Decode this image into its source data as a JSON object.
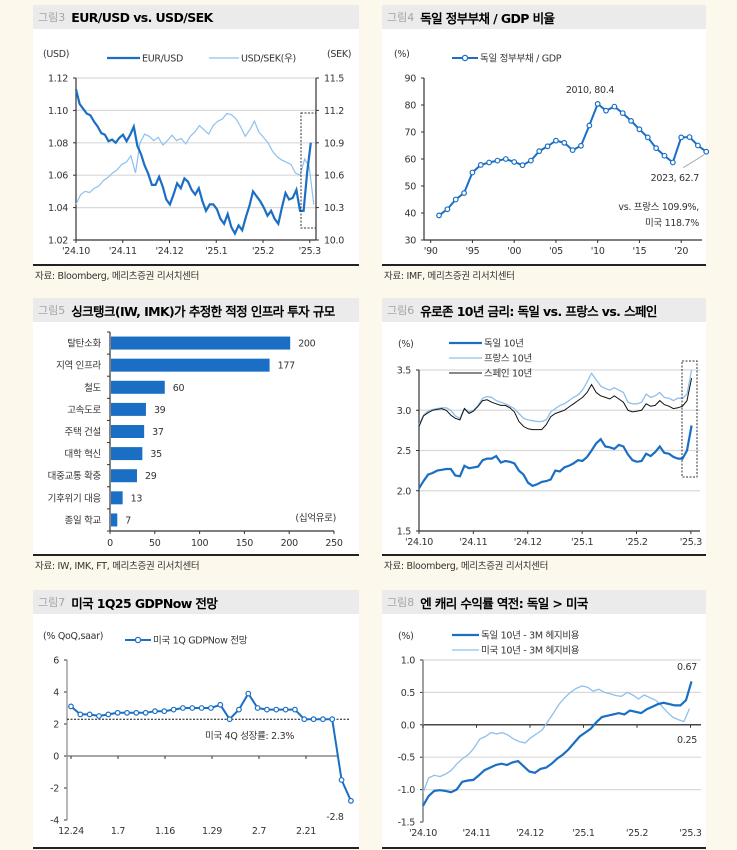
{
  "colors": {
    "background": "#fdf8ec",
    "dark_blue": "#1a6fc4",
    "light_blue": "#8fc0ec",
    "black": "#111111",
    "grid": "#d9d9d9"
  },
  "panels": [
    {
      "num": "그림3",
      "title": "EUR/USD vs. USD/SEK",
      "source": "자료: Bloomberg, 메리츠증권 리서치센터"
    },
    {
      "num": "그림4",
      "title": "독일 정부부채 / GDP 비율",
      "source": "자료: IMF, 메리츠증권 리서치센터"
    },
    {
      "num": "그림5",
      "title": "싱크탱크(IW, IMK)가 추정한 적정 인프라 투자 규모",
      "source": "자료: IW, IMK, FT, 메리츠증권 리서치센터"
    },
    {
      "num": "그림6",
      "title": "유로존 10년 금리: 독일 vs. 프랑스 vs. 스페인",
      "source": "자료: Bloomberg, 메리츠증권 리서치센터"
    },
    {
      "num": "그림7",
      "title": "미국 1Q25 GDPNow 전망",
      "source": ""
    },
    {
      "num": "그림8",
      "title": "엔 캐리 수익률 역전: 독일 > 미국",
      "source": ""
    }
  ],
  "chart_data": [
    {
      "id": "fig3",
      "type": "line",
      "title": "EUR/USD vs. USD/SEK",
      "ylabel": "(USD)",
      "y2label": "(SEK)",
      "xticks": [
        "'24.10",
        "'24.11",
        "'24.12",
        "'25.1",
        "'25.2",
        "'25.3"
      ],
      "ylim": [
        1.02,
        1.12
      ],
      "yticks": [
        "1.02",
        "1.04",
        "1.06",
        "1.08",
        "1.10",
        "1.12"
      ],
      "y2lim": [
        10.0,
        11.5
      ],
      "y2ticks": [
        "10.0",
        "10.3",
        "10.6",
        "10.9",
        "11.2",
        "11.5"
      ],
      "grid": true,
      "legend": "top",
      "highlight_box": "last two weeks of series",
      "series": [
        {
          "name": "EUR/USD",
          "axis": "left",
          "color": "#1a6fc4",
          "values": [
            1.113,
            1.104,
            1.101,
            1.098,
            1.097,
            1.093,
            1.09,
            1.086,
            1.085,
            1.081,
            1.082,
            1.08,
            1.083,
            1.085,
            1.081,
            1.085,
            1.09,
            1.078,
            1.073,
            1.066,
            1.061,
            1.054,
            1.054,
            1.059,
            1.053,
            1.045,
            1.042,
            1.048,
            1.055,
            1.052,
            1.058,
            1.056,
            1.051,
            1.048,
            1.052,
            1.044,
            1.038,
            1.042,
            1.042,
            1.039,
            1.033,
            1.03,
            1.036,
            1.028,
            1.024,
            1.029,
            1.026,
            1.034,
            1.041,
            1.05,
            1.047,
            1.044,
            1.04,
            1.035,
            1.038,
            1.033,
            1.03,
            1.04,
            1.049,
            1.045,
            1.046,
            1.051,
            1.038,
            1.038,
            1.062,
            1.08
          ]
        },
        {
          "name": "USD/SEK(우)",
          "axis": "right",
          "color": "#8fc0ec",
          "values": [
            10.33,
            10.42,
            10.45,
            10.44,
            10.48,
            10.5,
            10.55,
            10.58,
            10.62,
            10.65,
            10.7,
            10.72,
            10.78,
            10.62,
            10.9,
            10.98,
            10.96,
            10.92,
            10.95,
            10.88,
            10.92,
            10.97,
            10.92,
            10.94,
            10.89,
            10.96,
            11.0,
            11.06,
            11.02,
            10.98,
            11.06,
            11.1,
            11.12,
            11.17,
            11.16,
            11.12,
            11.05,
            10.96,
            11.02,
            11.1,
            11.0,
            10.95,
            10.9,
            10.82,
            10.77,
            10.74,
            10.72,
            10.7,
            10.62,
            10.6,
            10.75,
            10.68,
            10.33
          ]
        }
      ]
    },
    {
      "id": "fig4",
      "type": "line",
      "title": "독일 정부부채 / GDP 비율",
      "ylabel": "(%)",
      "ylim": [
        30,
        90
      ],
      "yticks": [
        "30",
        "40",
        "50",
        "60",
        "70",
        "80",
        "90"
      ],
      "xticks": [
        "'90",
        "'95",
        "'00",
        "'05",
        "'10",
        "'15",
        "'20"
      ],
      "x": [
        1991,
        1992,
        1993,
        1994,
        1995,
        1996,
        1997,
        1998,
        1999,
        2000,
        2001,
        2002,
        2003,
        2004,
        2005,
        2006,
        2007,
        2008,
        2009,
        2010,
        2011,
        2012,
        2013,
        2014,
        2015,
        2016,
        2017,
        2018,
        2019,
        2020,
        2021,
        2022,
        2023
      ],
      "series": [
        {
          "name": "독일 정부부채 / GDP",
          "color": "#1a6fc4",
          "values": [
            39.1,
            41.4,
            45.0,
            47.4,
            55.0,
            57.8,
            58.7,
            59.4,
            60.0,
            58.9,
            57.7,
            59.4,
            62.9,
            64.7,
            66.8,
            66.0,
            63.3,
            64.9,
            72.4,
            80.4,
            77.9,
            79.4,
            77.0,
            74.1,
            71.0,
            68.0,
            64.0,
            61.2,
            58.7,
            68.0,
            68.1,
            65.0,
            62.7
          ]
        }
      ],
      "annotations": [
        "2010, 80.4",
        "2023, 62.7",
        "vs. 프랑스 109.9%,",
        "미국 118.7%"
      ]
    },
    {
      "id": "fig5",
      "type": "bar",
      "orientation": "horizontal",
      "title": "싱크탱크(IW, IMK)가 추정한 적정 인프라 투자 규모",
      "unit": "(십억유로)",
      "xlim": [
        0,
        250
      ],
      "xticks": [
        "0",
        "50",
        "100",
        "150",
        "200",
        "250"
      ],
      "categories": [
        "탈탄소화",
        "지역 인프라",
        "철도",
        "고속도로",
        "주택 건설",
        "대학 혁신",
        "대중교통 확충",
        "기후위기 대응",
        "종일 학교"
      ],
      "values": [
        200,
        177,
        60,
        39,
        37,
        35,
        29,
        13,
        7
      ],
      "color": "#1a6fc4"
    },
    {
      "id": "fig6",
      "type": "line",
      "title": "유로존 10년 금리: 독일 vs. 프랑스 vs. 스페인",
      "ylabel": "(%)",
      "ylim": [
        1.5,
        3.5
      ],
      "yticks": [
        "1.5",
        "2.0",
        "2.5",
        "3.0",
        "3.5"
      ],
      "xticks": [
        "'24.10",
        "'24.11",
        "'24.12",
        "'25.1",
        "'25.2",
        "'25.3"
      ],
      "grid": true,
      "legend": "top-left",
      "highlight_box": "last two weeks of series",
      "series": [
        {
          "name": "독일 10년",
          "color": "#1a6fc4",
          "values": [
            2.03,
            2.12,
            2.2,
            2.22,
            2.25,
            2.26,
            2.27,
            2.27,
            2.19,
            2.18,
            2.31,
            2.28,
            2.29,
            2.3,
            2.38,
            2.4,
            2.4,
            2.43,
            2.35,
            2.37,
            2.36,
            2.34,
            2.25,
            2.2,
            2.1,
            2.06,
            2.08,
            2.11,
            2.12,
            2.14,
            2.25,
            2.24,
            2.29,
            2.31,
            2.34,
            2.38,
            2.37,
            2.42,
            2.5,
            2.59,
            2.64,
            2.55,
            2.54,
            2.52,
            2.57,
            2.55,
            2.45,
            2.38,
            2.36,
            2.37,
            2.46,
            2.43,
            2.48,
            2.55,
            2.47,
            2.46,
            2.42,
            2.4,
            2.4,
            2.5,
            2.81
          ]
        },
        {
          "name": "프랑스 10년",
          "color": "#8fc0ec",
          "values": [
            2.82,
            2.94,
            2.99,
            3.01,
            3.02,
            3.03,
            3.03,
            3.0,
            2.93,
            2.9,
            3.02,
            2.98,
            3.0,
            3.06,
            3.15,
            3.17,
            3.16,
            3.12,
            3.1,
            3.08,
            3.05,
            3.02,
            2.96,
            2.9,
            2.88,
            2.87,
            2.86,
            2.86,
            2.88,
            2.98,
            3.02,
            3.06,
            3.08,
            3.12,
            3.16,
            3.19,
            3.25,
            3.35,
            3.46,
            3.38,
            3.3,
            3.27,
            3.25,
            3.28,
            3.25,
            3.22,
            3.1,
            3.08,
            3.08,
            3.1,
            3.2,
            3.16,
            3.18,
            3.22,
            3.16,
            3.15,
            3.12,
            3.15,
            3.15,
            3.2,
            3.5
          ]
        },
        {
          "name": "스페인 10년",
          "color": "#111111",
          "values": [
            2.8,
            2.93,
            2.97,
            3.0,
            3.01,
            3.02,
            3.0,
            2.94,
            2.9,
            2.88,
            3.02,
            2.96,
            2.99,
            3.05,
            3.12,
            3.13,
            3.1,
            3.08,
            3.06,
            3.06,
            3.03,
            2.98,
            2.86,
            2.8,
            2.77,
            2.76,
            2.76,
            2.76,
            2.82,
            2.92,
            2.96,
            2.98,
            3.0,
            3.04,
            3.08,
            3.12,
            3.16,
            3.22,
            3.32,
            3.22,
            3.18,
            3.16,
            3.14,
            3.18,
            3.14,
            3.1,
            3.0,
            2.98,
            2.99,
            3.0,
            3.08,
            3.05,
            3.06,
            3.12,
            3.07,
            3.05,
            3.02,
            3.03,
            3.05,
            3.12,
            3.4
          ]
        }
      ]
    },
    {
      "id": "fig7",
      "type": "line",
      "title": "미국 1Q25 GDPNow 전망",
      "ylabel": "(% QoQ,saar)",
      "ylim": [
        -4,
        6
      ],
      "yticks": [
        "-4",
        "-2",
        "0",
        "2",
        "4",
        "6"
      ],
      "xticks": [
        "12.24",
        "1.7",
        "1.16",
        "1.29",
        "2.7",
        "2.21"
      ],
      "series": [
        {
          "name": "미국 1Q GDPNow 전망",
          "color": "#1a6fc4",
          "values": [
            3.1,
            2.6,
            2.6,
            2.5,
            2.6,
            2.7,
            2.7,
            2.7,
            2.7,
            2.8,
            2.8,
            2.9,
            3.0,
            3.0,
            3.0,
            3.0,
            3.2,
            2.3,
            2.9,
            3.9,
            3.0,
            2.9,
            2.9,
            2.9,
            2.9,
            2.3,
            2.3,
            2.3,
            2.3,
            -1.5,
            -2.8
          ]
        }
      ],
      "reference_line": {
        "value": 2.3,
        "label": "미국 4Q 성장률: 2.3%"
      },
      "annotations": [
        "-2.8"
      ]
    },
    {
      "id": "fig8",
      "type": "line",
      "title": "엔 캐리 수익률 역전: 독일 > 미국",
      "ylabel": "(%)",
      "ylim": [
        -1.5,
        1.0
      ],
      "yticks": [
        "-1.5",
        "-1.0",
        "-0.5",
        "0.0",
        "0.5",
        "1.0"
      ],
      "xticks": [
        "'24.10",
        "'24.11",
        "'24.12",
        "'25.1",
        "'25.2",
        "'25.3"
      ],
      "grid": true,
      "legend": "top-left",
      "series": [
        {
          "name": "독일 10년 - 3M 헤지비용",
          "color": "#1a6fc4",
          "values": [
            -1.25,
            -1.1,
            -1.02,
            -1.01,
            -1.02,
            -1.04,
            -1.0,
            -0.88,
            -0.86,
            -0.85,
            -0.78,
            -0.7,
            -0.66,
            -0.62,
            -0.6,
            -0.62,
            -0.58,
            -0.56,
            -0.64,
            -0.72,
            -0.74,
            -0.68,
            -0.66,
            -0.6,
            -0.52,
            -0.46,
            -0.38,
            -0.28,
            -0.18,
            -0.12,
            -0.06,
            0.04,
            0.12,
            0.14,
            0.16,
            0.18,
            0.16,
            0.22,
            0.2,
            0.18,
            0.24,
            0.28,
            0.32,
            0.34,
            0.32,
            0.3,
            0.3,
            0.38,
            0.67
          ]
        },
        {
          "name": "미국 10년 - 3M 헤지비용",
          "color": "#8fc0ec",
          "values": [
            -1.05,
            -0.82,
            -0.78,
            -0.8,
            -0.76,
            -0.7,
            -0.6,
            -0.52,
            -0.46,
            -0.36,
            -0.22,
            -0.18,
            -0.12,
            -0.14,
            -0.12,
            -0.16,
            -0.22,
            -0.26,
            -0.28,
            -0.2,
            -0.14,
            -0.08,
            0.05,
            0.18,
            0.32,
            0.42,
            0.5,
            0.56,
            0.6,
            0.58,
            0.52,
            0.55,
            0.5,
            0.48,
            0.45,
            0.44,
            0.5,
            0.46,
            0.4,
            0.46,
            0.42,
            0.38,
            0.3,
            0.2,
            0.12,
            0.08,
            0.05,
            0.25
          ]
        }
      ],
      "annotations": [
        "0.67",
        "0.25"
      ]
    }
  ]
}
